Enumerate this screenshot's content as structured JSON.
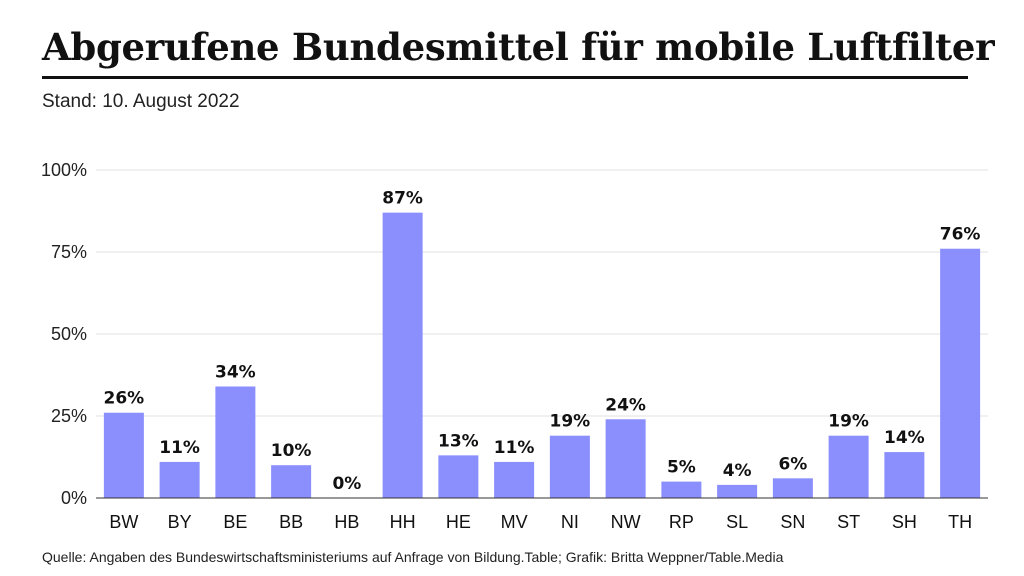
{
  "header": {
    "title": "Abgerufene Bundesmittel für mobile Luftfilter",
    "subtitle": "Stand: 10. August 2022"
  },
  "footer": {
    "source": "Quelle: Angaben des Bundeswirtschaftsministeriums auf Anfrage von Bildung.Table; Grafik: Britta Weppner/Table.Media"
  },
  "colors": {
    "bar": "#8b8ffd",
    "grid": "#e0e0e0",
    "axis": "#333333"
  },
  "chart_data": {
    "type": "bar",
    "title": "Abgerufene Bundesmittel für mobile Luftfilter",
    "xlabel": "",
    "ylabel": "",
    "ylim": [
      0,
      100
    ],
    "yticks": [
      0,
      25,
      50,
      75,
      100
    ],
    "ytick_labels": [
      "0%",
      "25%",
      "50%",
      "75%",
      "100%"
    ],
    "grid": true,
    "categories": [
      "BW",
      "BY",
      "BE",
      "BB",
      "HB",
      "HH",
      "HE",
      "MV",
      "NI",
      "NW",
      "RP",
      "SL",
      "SN",
      "ST",
      "SH",
      "TH"
    ],
    "values": [
      26,
      11,
      34,
      10,
      0,
      87,
      13,
      11,
      19,
      24,
      5,
      4,
      6,
      19,
      14,
      76
    ],
    "value_labels": [
      "26%",
      "11%",
      "34%",
      "10%",
      "0%",
      "87%",
      "13%",
      "11%",
      "19%",
      "24%",
      "5%",
      "4%",
      "6%",
      "19%",
      "14%",
      "76%"
    ]
  }
}
